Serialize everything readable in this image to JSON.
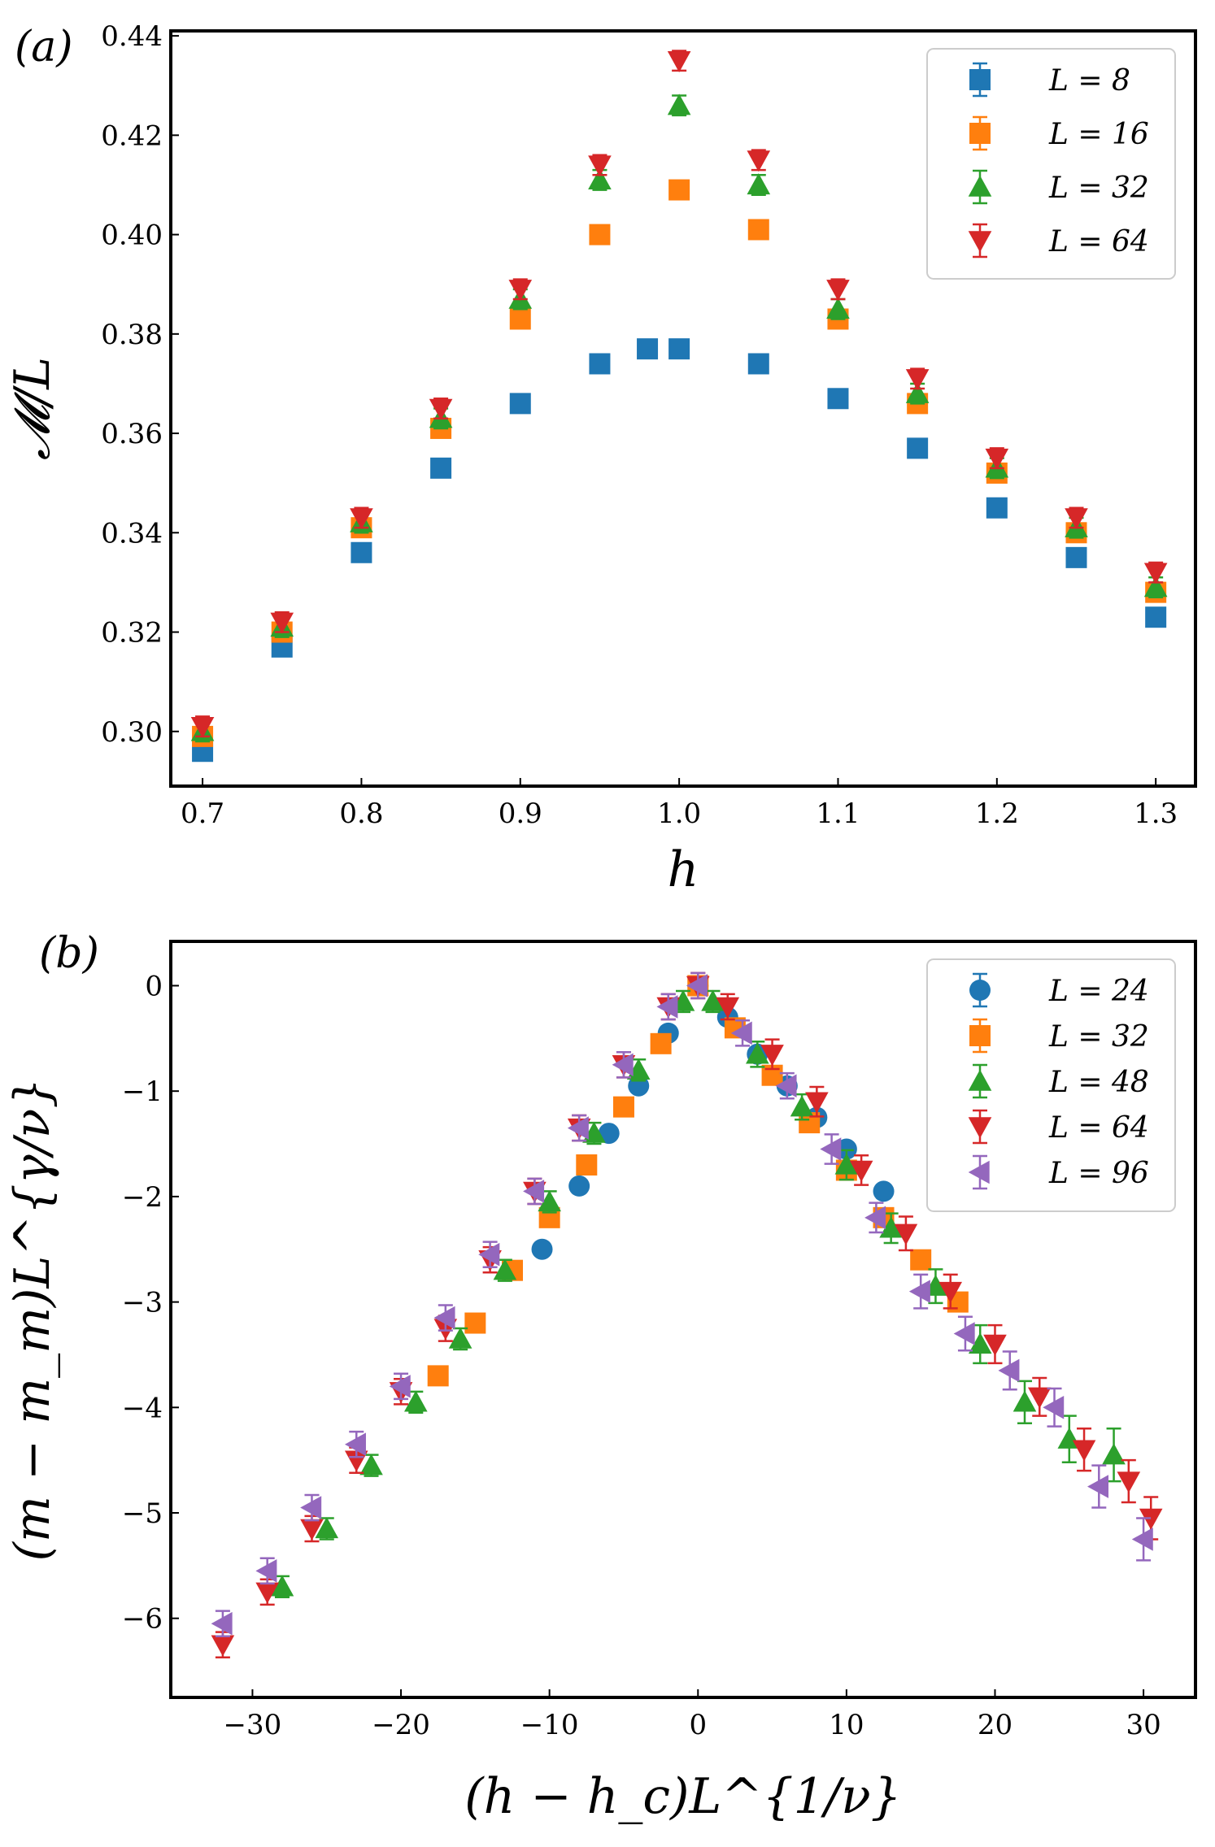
{
  "chart_data": [
    {
      "panel_label": "(a)",
      "type": "scatter",
      "xlabel": "h",
      "ylabel": "𝓜/L",
      "xlim": [
        0.68,
        1.325
      ],
      "ylim": [
        0.289,
        0.441
      ],
      "xticks": [
        0.7,
        0.8,
        0.9,
        1.0,
        1.1,
        1.2,
        1.3
      ],
      "xtick_labels": [
        "0.7",
        "0.8",
        "0.9",
        "1.0",
        "1.1",
        "1.2",
        "1.3"
      ],
      "yticks": [
        0.3,
        0.32,
        0.34,
        0.36,
        0.38,
        0.4,
        0.42,
        0.44
      ],
      "ytick_labels": [
        "0.30",
        "0.32",
        "0.34",
        "0.36",
        "0.38",
        "0.40",
        "0.42",
        "0.44"
      ],
      "grid": false,
      "legend_position": "top-right",
      "series": [
        {
          "name": "L = 8",
          "color": "#1f77b4",
          "marker": "square",
          "x": [
            0.7,
            0.75,
            0.8,
            0.85,
            0.9,
            0.95,
            0.98,
            1.0,
            1.05,
            1.1,
            1.15,
            1.2,
            1.25,
            1.3
          ],
          "y": [
            0.296,
            0.317,
            0.336,
            0.353,
            0.366,
            0.374,
            0.377,
            0.377,
            0.374,
            0.367,
            0.357,
            0.345,
            0.335,
            0.323
          ],
          "err": [
            0.0015,
            0.0015,
            0.0015,
            0.0015,
            0.0015,
            0.0015,
            0.0015,
            0.0015,
            0.0015,
            0.0015,
            0.0015,
            0.0015,
            0.0015,
            0.0015
          ]
        },
        {
          "name": "L = 16",
          "color": "#ff7f0e",
          "marker": "square",
          "x": [
            0.7,
            0.75,
            0.8,
            0.85,
            0.9,
            0.95,
            1.0,
            1.05,
            1.1,
            1.15,
            1.2,
            1.25,
            1.3
          ],
          "y": [
            0.299,
            0.32,
            0.341,
            0.361,
            0.383,
            0.4,
            0.409,
            0.401,
            0.383,
            0.366,
            0.352,
            0.34,
            0.328
          ],
          "err": [
            0.0018,
            0.0018,
            0.0018,
            0.0018,
            0.0018,
            0.0018,
            0.0018,
            0.0018,
            0.0018,
            0.0018,
            0.0018,
            0.0018,
            0.0018
          ]
        },
        {
          "name": "L = 32",
          "color": "#2ca02c",
          "marker": "triangle-up",
          "x": [
            0.7,
            0.75,
            0.8,
            0.85,
            0.9,
            0.95,
            1.0,
            1.05,
            1.1,
            1.15,
            1.2,
            1.25,
            1.3
          ],
          "y": [
            0.3,
            0.321,
            0.342,
            0.363,
            0.387,
            0.411,
            0.426,
            0.41,
            0.385,
            0.368,
            0.353,
            0.341,
            0.329
          ],
          "err": [
            0.002,
            0.002,
            0.002,
            0.002,
            0.002,
            0.002,
            0.002,
            0.002,
            0.002,
            0.002,
            0.002,
            0.002,
            0.002
          ]
        },
        {
          "name": "L = 64",
          "color": "#d62728",
          "marker": "triangle-down",
          "x": [
            0.7,
            0.75,
            0.8,
            0.85,
            0.9,
            0.95,
            1.0,
            1.05,
            1.1,
            1.15,
            1.2,
            1.25,
            1.3
          ],
          "y": [
            0.301,
            0.322,
            0.343,
            0.365,
            0.389,
            0.414,
            0.435,
            0.415,
            0.389,
            0.371,
            0.355,
            0.343,
            0.332
          ],
          "err": [
            0.002,
            0.002,
            0.002,
            0.002,
            0.002,
            0.002,
            0.002,
            0.002,
            0.002,
            0.002,
            0.002,
            0.002,
            0.002
          ]
        }
      ]
    },
    {
      "panel_label": "(b)",
      "type": "scatter",
      "xlabel": "(h − h_c)L^{1/ν}",
      "ylabel": "(m − m_m)L^{γ/ν}",
      "xlim": [
        -35.5,
        33.5
      ],
      "ylim": [
        -6.75,
        0.42
      ],
      "xticks": [
        -30,
        -20,
        -10,
        0,
        10,
        20,
        30
      ],
      "xtick_labels": [
        "−30",
        "−20",
        "−10",
        "0",
        "10",
        "20",
        "30"
      ],
      "yticks": [
        0,
        -1,
        -2,
        -3,
        -4,
        -5,
        -6
      ],
      "ytick_labels": [
        "0",
        "−1",
        "−2",
        "−3",
        "−4",
        "−5",
        "−6"
      ],
      "grid": false,
      "legend_position": "top-right",
      "series": [
        {
          "name": "L = 24",
          "color": "#1f77b4",
          "marker": "circle",
          "x": [
            -10.5,
            -8,
            -6,
            -4,
            -2,
            0,
            2,
            4,
            6,
            8,
            10,
            12.5
          ],
          "y": [
            -2.5,
            -1.9,
            -1.4,
            -0.95,
            -0.45,
            0.0,
            -0.3,
            -0.65,
            -0.95,
            -1.25,
            -1.55,
            -1.95
          ],
          "err": [
            0.05,
            0.05,
            0.05,
            0.05,
            0.05,
            0.05,
            0.05,
            0.05,
            0.05,
            0.05,
            0.05,
            0.05
          ]
        },
        {
          "name": "L = 32",
          "color": "#ff7f0e",
          "marker": "square",
          "x": [
            -17.5,
            -15,
            -12.5,
            -10,
            -7.5,
            -5,
            -2.5,
            0,
            2.5,
            5,
            7.5,
            10,
            12.5,
            15,
            17.5
          ],
          "y": [
            -3.7,
            -3.2,
            -2.7,
            -2.2,
            -1.7,
            -1.15,
            -0.55,
            0.0,
            -0.4,
            -0.85,
            -1.3,
            -1.75,
            -2.2,
            -2.6,
            -3.0
          ],
          "err": [
            0.06,
            0.06,
            0.06,
            0.06,
            0.06,
            0.06,
            0.06,
            0.06,
            0.06,
            0.06,
            0.06,
            0.06,
            0.06,
            0.06,
            0.06
          ]
        },
        {
          "name": "L = 48",
          "color": "#2ca02c",
          "marker": "triangle-up",
          "x": [
            -28,
            -25,
            -22,
            -19,
            -16,
            -13,
            -10,
            -7,
            -4,
            -1,
            1,
            4,
            7,
            10,
            13,
            16,
            19,
            22,
            25,
            28
          ],
          "y": [
            -5.7,
            -5.15,
            -4.55,
            -3.95,
            -3.35,
            -2.7,
            -2.05,
            -1.4,
            -0.8,
            -0.15,
            -0.15,
            -0.65,
            -1.15,
            -1.7,
            -2.3,
            -2.85,
            -3.4,
            -3.95,
            -4.3,
            -4.45
          ],
          "err": [
            0.1,
            0.1,
            0.1,
            0.1,
            0.1,
            0.1,
            0.1,
            0.1,
            0.1,
            0.1,
            0.1,
            0.12,
            0.12,
            0.14,
            0.14,
            0.16,
            0.18,
            0.2,
            0.22,
            0.25
          ]
        },
        {
          "name": "L = 64",
          "color": "#d62728",
          "marker": "triangle-down",
          "x": [
            -32,
            -29,
            -26,
            -23,
            -20,
            -17,
            -14,
            -11,
            -8,
            -5,
            -2,
            0,
            2,
            5,
            8,
            11,
            14,
            17,
            20,
            23,
            26,
            29,
            30.5
          ],
          "y": [
            -6.25,
            -5.75,
            -5.15,
            -4.5,
            -3.85,
            -3.25,
            -2.6,
            -1.95,
            -1.35,
            -0.75,
            -0.2,
            0.0,
            -0.2,
            -0.65,
            -1.1,
            -1.75,
            -2.35,
            -2.9,
            -3.4,
            -3.9,
            -4.4,
            -4.7,
            -5.05
          ],
          "err": [
            0.12,
            0.12,
            0.12,
            0.12,
            0.12,
            0.12,
            0.12,
            0.12,
            0.12,
            0.12,
            0.12,
            0.12,
            0.12,
            0.14,
            0.14,
            0.14,
            0.16,
            0.16,
            0.18,
            0.18,
            0.2,
            0.2,
            0.2
          ]
        },
        {
          "name": "L = 96",
          "color": "#9467bd",
          "marker": "triangle-left",
          "x": [
            -32,
            -29,
            -26,
            -23,
            -20,
            -17,
            -14,
            -11,
            -8,
            -5,
            -2,
            0,
            3,
            6,
            9,
            12,
            15,
            18,
            21,
            24,
            27,
            30
          ],
          "y": [
            -6.05,
            -5.55,
            -4.95,
            -4.35,
            -3.8,
            -3.15,
            -2.55,
            -1.95,
            -1.35,
            -0.75,
            -0.2,
            0.0,
            -0.45,
            -0.95,
            -1.55,
            -2.2,
            -2.9,
            -3.3,
            -3.65,
            -4.0,
            -4.75,
            -5.25
          ],
          "err": [
            0.12,
            0.12,
            0.12,
            0.12,
            0.12,
            0.12,
            0.12,
            0.12,
            0.12,
            0.12,
            0.12,
            0.12,
            0.12,
            0.12,
            0.14,
            0.14,
            0.16,
            0.16,
            0.18,
            0.18,
            0.2,
            0.2
          ]
        }
      ]
    }
  ]
}
